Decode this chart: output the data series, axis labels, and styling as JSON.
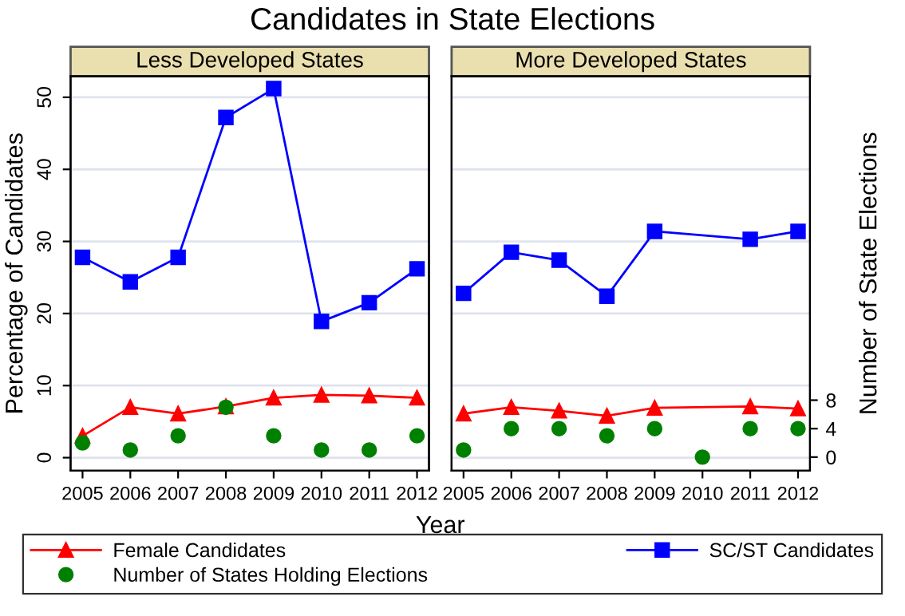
{
  "chart_data": [
    {
      "type": "line",
      "title": "Candidates in State Elections",
      "subtitle": "Less Developed States",
      "xlabel": "Year",
      "ylabel": "Percentage of Candidates",
      "xlim": [
        2004.75,
        2012.25
      ],
      "xticks": [
        2005,
        2006,
        2007,
        2008,
        2009,
        2010,
        2011,
        2012
      ],
      "ylim": [
        -1.8,
        52.9
      ],
      "yticks": [
        0,
        10,
        20,
        30,
        40,
        50
      ],
      "y2lim": [
        -1.9,
        53.5
      ],
      "grid": "y",
      "legend": "bottom",
      "tick_labels": [
        "x",
        "y"
      ],
      "series": [
        {
          "name": "Female Candidates",
          "marker": "triangle",
          "color": "#ff0000",
          "x": [
            2005,
            2006,
            2007,
            2008,
            2009,
            2010,
            2011,
            2012
          ],
          "values": [
            3.0,
            7.0,
            6.1,
            7.1,
            8.3,
            8.7,
            8.6,
            8.3
          ]
        },
        {
          "name": "SC/ST Candidates",
          "marker": "square",
          "color": "#0000ff",
          "x": [
            2005,
            2006,
            2007,
            2008,
            2009,
            2010,
            2011,
            2012
          ],
          "values": [
            27.8,
            24.4,
            27.8,
            47.2,
            51.2,
            18.9,
            21.5,
            26.2
          ]
        },
        {
          "name": "Number of States Holding Elections",
          "type": "scatter",
          "marker": "circle",
          "axis": "y2",
          "color": "#008000",
          "x": [
            2005,
            2006,
            2007,
            2008,
            2009,
            2010,
            2011,
            2012
          ],
          "values": [
            2,
            1,
            3,
            7,
            3,
            1,
            1,
            3
          ]
        }
      ]
    },
    {
      "type": "line",
      "subtitle": "More Developed States",
      "y2label": "Number of State Elections",
      "xlim": [
        2004.75,
        2012.25
      ],
      "xticks": [
        2005,
        2006,
        2007,
        2008,
        2009,
        2010,
        2011,
        2012
      ],
      "ylim": [
        -1.8,
        52.9
      ],
      "y2lim": [
        -1.9,
        53.5
      ],
      "y2ticks": [
        0,
        4,
        8
      ],
      "grid": "y",
      "tick_labels": [
        "x",
        "y2"
      ],
      "series": [
        {
          "marker": "triangle",
          "color": "#ff0000",
          "x": [
            2005,
            2006,
            2007,
            2008,
            2009,
            2011,
            2012
          ],
          "values": [
            6.1,
            7.0,
            6.5,
            5.8,
            6.9,
            7.1,
            6.8
          ]
        },
        {
          "marker": "square",
          "color": "#0000ff",
          "x": [
            2005,
            2006,
            2007,
            2008,
            2009,
            2011,
            2012
          ],
          "values": [
            22.8,
            28.5,
            27.4,
            22.4,
            31.4,
            30.3,
            31.4
          ]
        },
        {
          "type": "scatter",
          "marker": "circle",
          "axis": "y2",
          "color": "#008000",
          "x": [
            2005,
            2006,
            2007,
            2008,
            2009,
            2010,
            2011,
            2012
          ],
          "values": [
            1,
            4,
            4,
            3,
            4,
            0,
            4,
            4
          ]
        }
      ]
    }
  ]
}
